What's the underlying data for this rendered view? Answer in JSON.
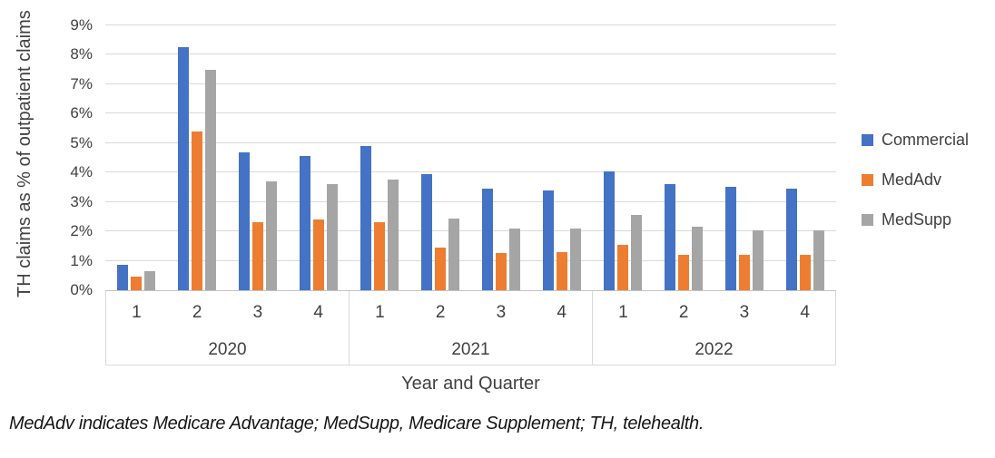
{
  "chart_data": {
    "type": "bar",
    "title": "",
    "xlabel": "Year and Quarter",
    "ylabel": "TH claims as % of outpatient claims",
    "ylim": [
      0,
      9
    ],
    "ytick_step": 1,
    "ytick_suffix": "%",
    "grid": true,
    "legend_position": "right",
    "groups": [
      {
        "year": "2020",
        "quarters": [
          "1",
          "2",
          "3",
          "4"
        ]
      },
      {
        "year": "2021",
        "quarters": [
          "1",
          "2",
          "3",
          "4"
        ]
      },
      {
        "year": "2022",
        "quarters": [
          "1",
          "2",
          "3",
          "4"
        ]
      }
    ],
    "series": [
      {
        "name": "Commercial",
        "color": "#4472C4",
        "values": [
          0.85,
          8.25,
          4.7,
          4.55,
          4.9,
          3.95,
          3.45,
          3.4,
          4.05,
          3.6,
          3.5,
          3.45
        ]
      },
      {
        "name": "MedAdv",
        "color": "#ED7D31",
        "values": [
          0.45,
          5.4,
          2.3,
          2.4,
          2.3,
          1.45,
          1.25,
          1.3,
          1.55,
          1.2,
          1.2,
          1.2
        ]
      },
      {
        "name": "MedSupp",
        "color": "#A5A5A5",
        "values": [
          0.65,
          7.5,
          3.7,
          3.6,
          3.75,
          2.45,
          2.1,
          2.1,
          2.55,
          2.15,
          2.05,
          2.05
        ]
      }
    ]
  },
  "footnote": "MedAdv indicates Medicare Advantage; MedSupp, Medicare Supplement; TH, telehealth.",
  "colors": {
    "gridline": "#D9D9D9",
    "axis_line": "#C3C3C3",
    "axis_text": "#404040",
    "background": "#FFFFFF"
  }
}
